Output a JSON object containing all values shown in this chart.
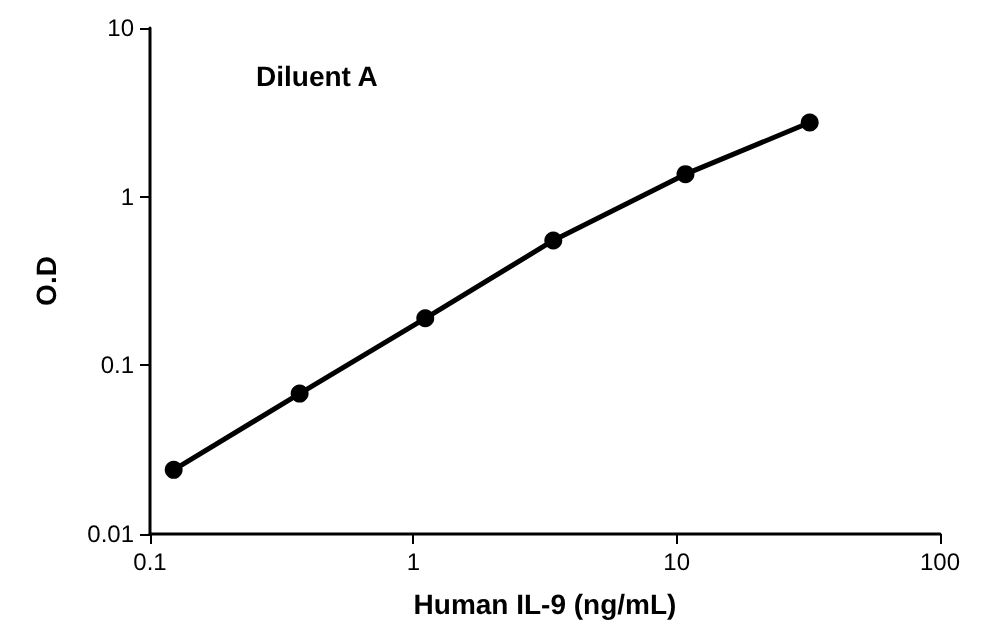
{
  "chart_data": {
    "type": "line",
    "title": "Diluent A",
    "xlabel": "Human IL-9 (ng/mL)",
    "ylabel": "O.D",
    "log": "xy",
    "x": [
      0.123,
      0.37,
      1.11,
      3.4,
      10.8,
      32
    ],
    "series": [
      {
        "color": "#000000",
        "values": [
          0.024,
          0.068,
          0.19,
          0.55,
          1.36,
          2.75
        ]
      }
    ],
    "xlim": [
      0.1,
      100
    ],
    "xticks": [
      0.1,
      1,
      10,
      100
    ],
    "ylim": [
      0.01,
      10
    ],
    "yticks": [
      0.01,
      0.1,
      1,
      10
    ],
    "grid": false,
    "marker": "circle",
    "line_style": "solid"
  }
}
